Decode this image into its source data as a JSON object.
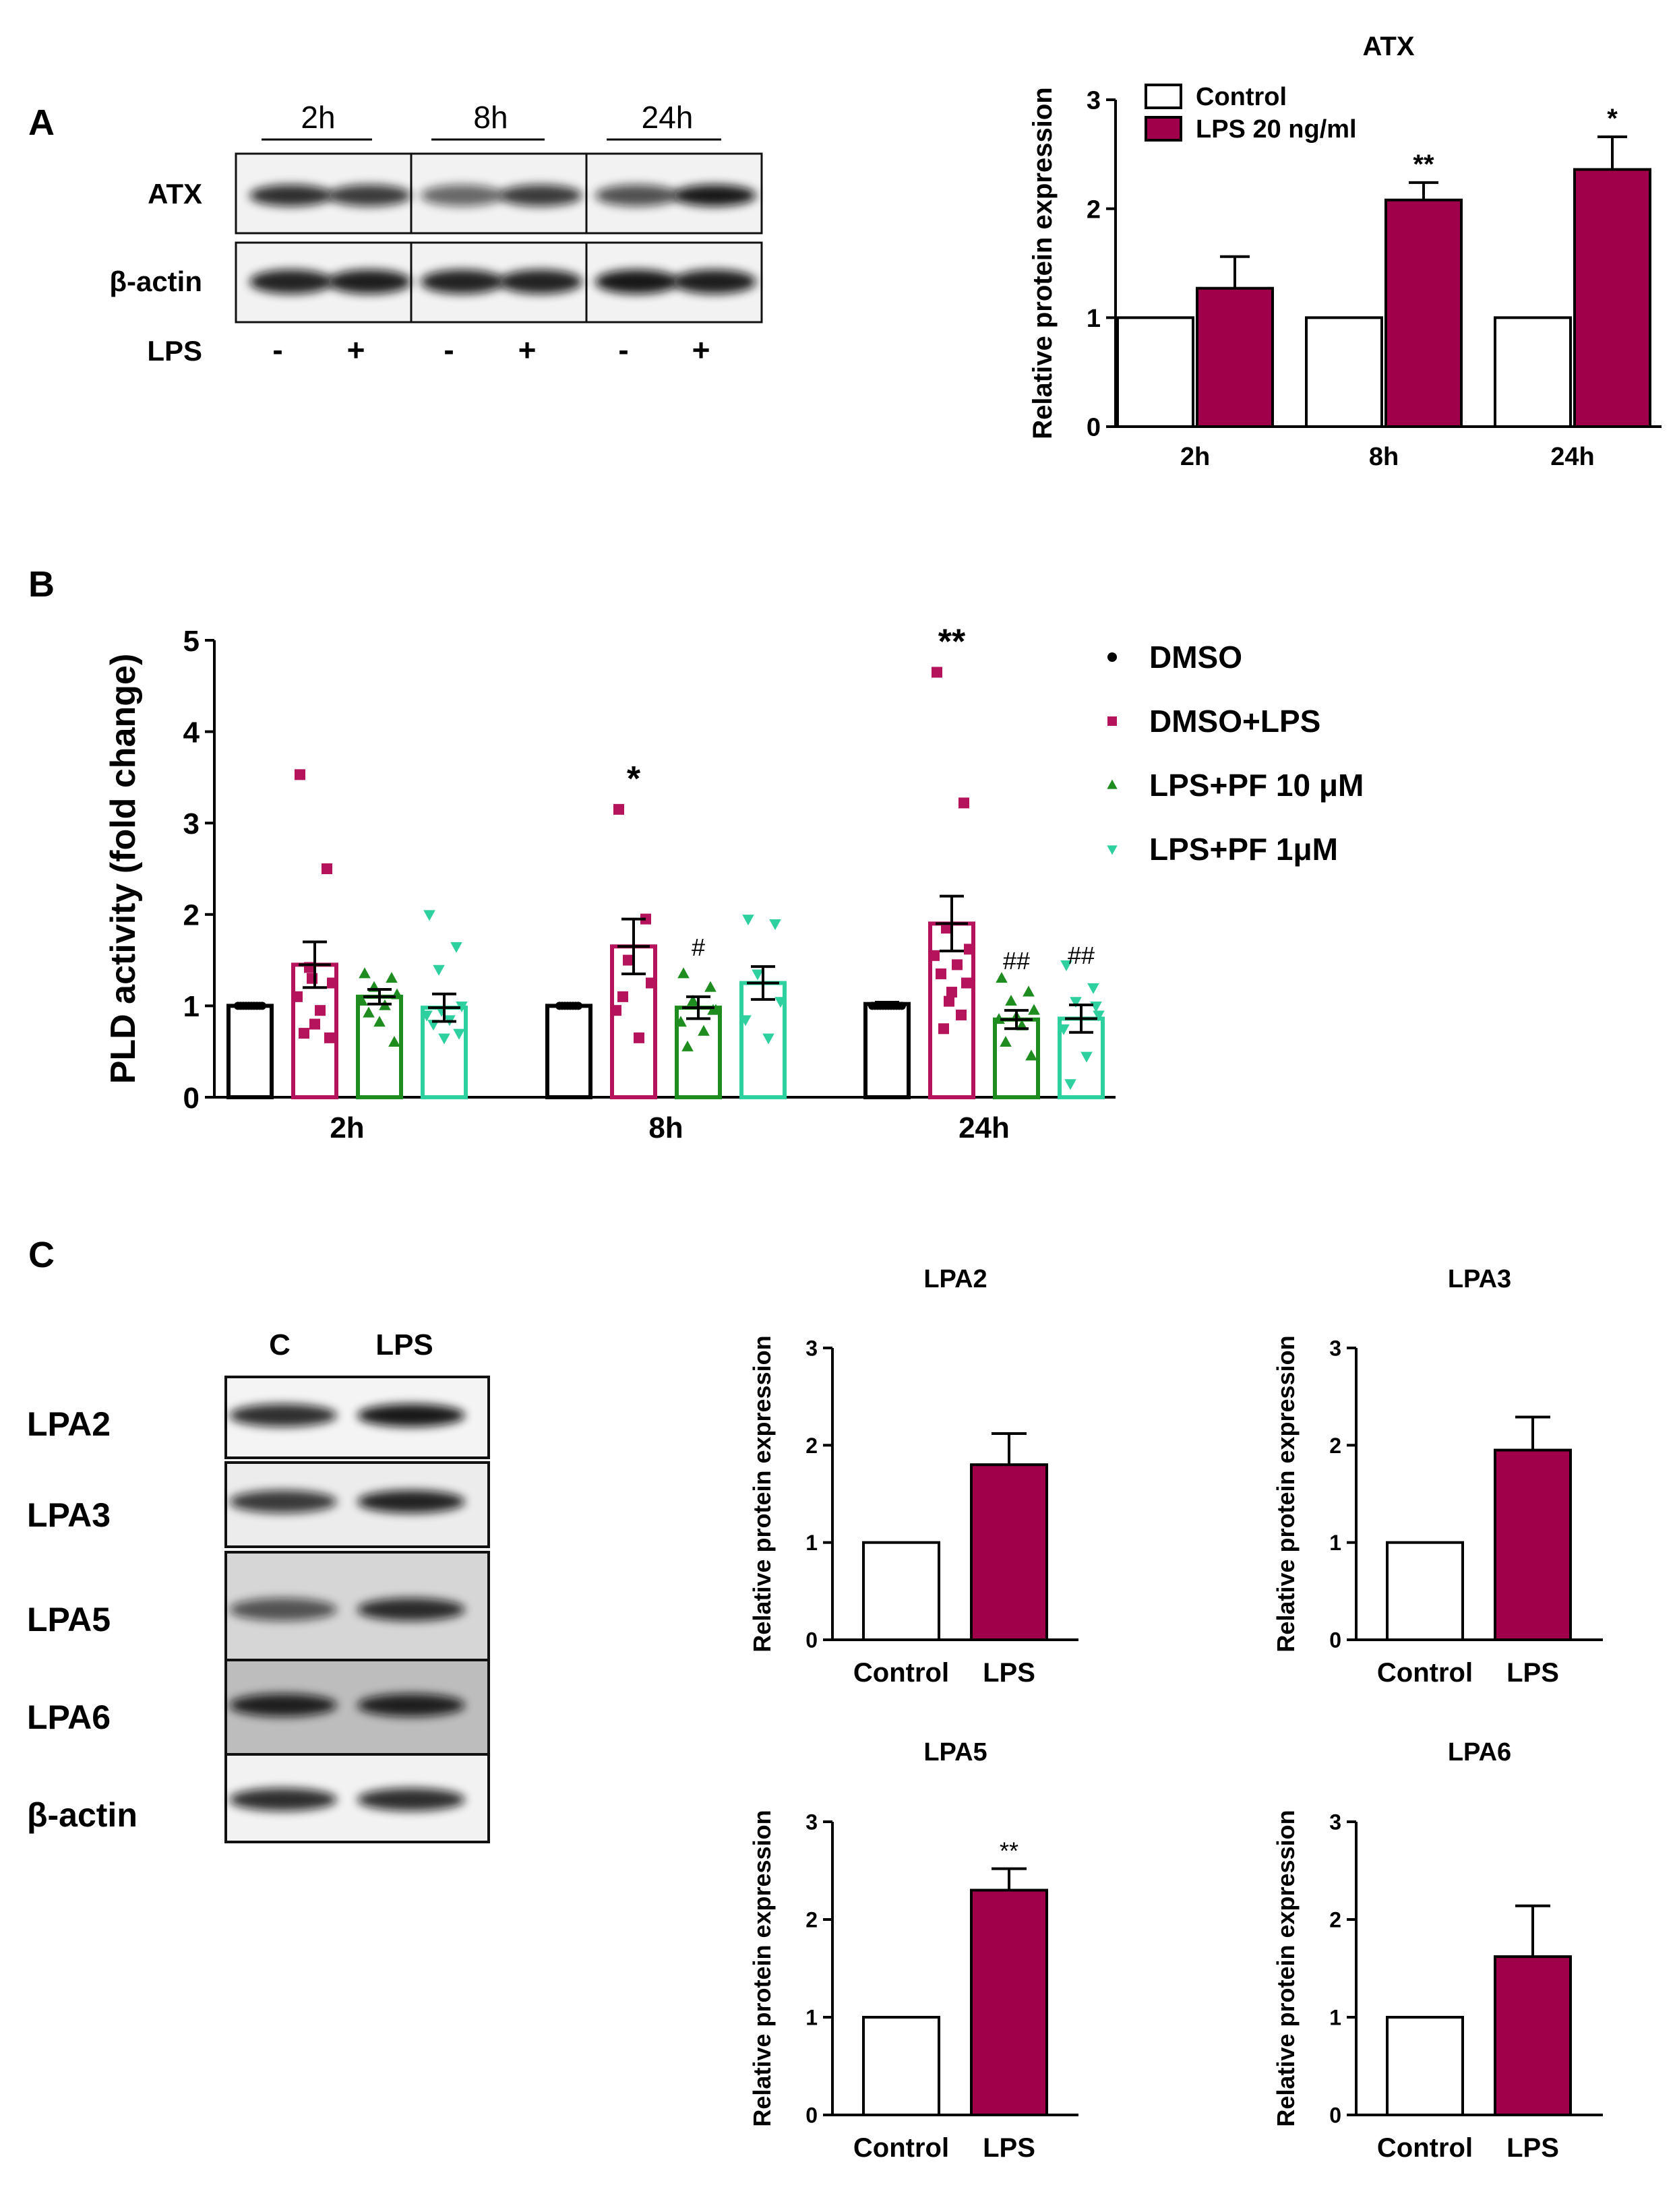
{
  "figure": {
    "panel_labels": [
      "A",
      "B",
      "C"
    ],
    "blot_a": {
      "time_labels": [
        "2h",
        "8h",
        "24h"
      ],
      "row_labels": [
        "ATX",
        "β-actin",
        "LPS"
      ],
      "lps_signs": [
        "-",
        "+",
        "-",
        "+",
        "-",
        "+"
      ]
    },
    "blot_c": {
      "col_labels": [
        "C",
        "LPS"
      ],
      "row_labels": [
        "LPA2",
        "LPA3",
        "LPA5",
        "LPA6",
        "β-actin"
      ]
    }
  },
  "colors": {
    "control": "#ffffff",
    "lps": "#a0004a",
    "dmso": "#000000",
    "dmso_lps": "#b5145c",
    "pf10": "#1e8c1e",
    "pf1": "#2ed0a0"
  },
  "chart_data": [
    {
      "id": "atx",
      "type": "bar",
      "title": "ATX",
      "ylabel": "Relative protein expression",
      "xlabel": "",
      "categories": [
        "2h",
        "8h",
        "24h"
      ],
      "ylim": [
        0,
        3
      ],
      "yticks": [
        0,
        1,
        2,
        3
      ],
      "legend": "top-left",
      "series": [
        {
          "name": "Control",
          "values": [
            1,
            1,
            1
          ],
          "errors": [
            0,
            0,
            0
          ],
          "color_key": "control"
        },
        {
          "name": "LPS 20 ng/ml",
          "values": [
            1.27,
            2.08,
            2.36
          ],
          "errors": [
            0.29,
            0.16,
            0.3
          ],
          "color_key": "lps"
        }
      ],
      "annotations": [
        {
          "series": 1,
          "category": 1,
          "text": "**"
        },
        {
          "series": 1,
          "category": 2,
          "text": "*"
        }
      ]
    },
    {
      "id": "pld",
      "type": "bar",
      "title": "",
      "ylabel": "PLD activity (fold change)",
      "xlabel": "",
      "categories": [
        "2h",
        "8h",
        "24h"
      ],
      "ylim": [
        0,
        5
      ],
      "yticks": [
        0,
        1,
        2,
        3,
        4,
        5
      ],
      "legend": "top-right",
      "series": [
        {
          "name": "DMSO",
          "marker": "circle",
          "color_key": "dmso",
          "values": [
            1.0,
            1.0,
            1.02
          ],
          "errors": [
            0.01,
            0.01,
            0.02
          ],
          "points": [
            [
              1,
              1,
              1,
              1,
              1,
              1,
              1,
              1,
              1,
              1
            ],
            [
              1,
              1,
              1,
              1,
              1,
              1,
              1,
              1
            ],
            [
              1,
              1,
              1,
              1,
              1,
              1,
              1,
              1,
              1,
              1,
              1,
              1
            ]
          ]
        },
        {
          "name": "DMSO+LPS",
          "marker": "square",
          "color_key": "dmso_lps",
          "values": [
            1.45,
            1.65,
            1.9
          ],
          "errors": [
            0.25,
            0.3,
            0.3
          ],
          "points": [
            [
              3.53,
              2.5,
              1.42,
              1.25,
              1.1,
              0.95,
              0.7,
              0.65,
              0.8,
              1.3
            ],
            [
              3.15,
              1.95,
              1.5,
              1.25,
              0.95,
              0.65,
              1.1
            ],
            [
              4.65,
              3.22,
              1.85,
              1.62,
              1.55,
              1.45,
              1.35,
              1.25,
              1.15,
              1.05,
              0.9,
              0.75
            ]
          ]
        },
        {
          "name": "LPS+PF 10 μM",
          "marker": "triangle-up",
          "color_key": "pf10",
          "values": [
            1.1,
            0.98,
            0.85
          ],
          "errors": [
            0.08,
            0.12,
            0.1
          ],
          "points": [
            [
              1.35,
              1.3,
              1.2,
              1.12,
              1.05,
              1.0,
              0.92,
              0.6,
              0.82
            ],
            [
              1.35,
              1.2,
              1.05,
              0.95,
              0.82,
              0.72,
              0.55,
              0.95
            ],
            [
              1.3,
              1.15,
              1.05,
              0.95,
              0.85,
              0.78,
              0.6,
              0.45,
              0.88
            ]
          ]
        },
        {
          "name": "LPS+PF 1μM",
          "marker": "triangle-down",
          "color_key": "pf1",
          "values": [
            0.98,
            1.25,
            0.86
          ],
          "errors": [
            0.15,
            0.18,
            0.15
          ],
          "points": [
            [
              2.0,
              1.65,
              1.4,
              1.0,
              0.9,
              0.85,
              0.8,
              0.7,
              0.65,
              0.95
            ],
            [
              1.95,
              1.9,
              1.35,
              1.05,
              0.85,
              0.65
            ],
            [
              1.45,
              1.2,
              1.05,
              0.9,
              0.75,
              0.45,
              0.15,
              1.0
            ]
          ]
        }
      ],
      "annotations": [
        {
          "series": 1,
          "category": 1,
          "text": "*"
        },
        {
          "series": 1,
          "category": 2,
          "text": "**"
        },
        {
          "series": 2,
          "category": 1,
          "text": "#"
        },
        {
          "series": 2,
          "category": 2,
          "text": "##"
        },
        {
          "series": 3,
          "category": 2,
          "text": "##"
        }
      ]
    },
    {
      "id": "lpa2",
      "type": "bar",
      "title": "LPA2",
      "ylabel": "Relative protein expression",
      "xlabel": "",
      "categories": [
        "Control",
        "LPS"
      ],
      "ylim": [
        0,
        3
      ],
      "yticks": [
        0,
        1,
        2,
        3
      ],
      "values": [
        1,
        1.8
      ],
      "errors": [
        0,
        0.32
      ],
      "color_keys": [
        "control",
        "lps"
      ],
      "annotations": []
    },
    {
      "id": "lpa3",
      "type": "bar",
      "title": "LPA3",
      "ylabel": "Relative protein expression",
      "xlabel": "",
      "categories": [
        "Control",
        "LPS"
      ],
      "ylim": [
        0,
        3
      ],
      "yticks": [
        0,
        1,
        2,
        3
      ],
      "values": [
        1,
        1.95
      ],
      "errors": [
        0,
        0.34
      ],
      "color_keys": [
        "control",
        "lps"
      ],
      "annotations": []
    },
    {
      "id": "lpa5",
      "type": "bar",
      "title": "LPA5",
      "ylabel": "Relative protein expression",
      "xlabel": "",
      "categories": [
        "Control",
        "LPS"
      ],
      "ylim": [
        0,
        3
      ],
      "yticks": [
        0,
        1,
        2,
        3
      ],
      "values": [
        1,
        2.3
      ],
      "errors": [
        0,
        0.22
      ],
      "color_keys": [
        "control",
        "lps"
      ],
      "annotations": [
        {
          "category": 1,
          "text": "**"
        }
      ]
    },
    {
      "id": "lpa6",
      "type": "bar",
      "title": "LPA6",
      "ylabel": "Relative protein expression",
      "xlabel": "",
      "categories": [
        "Control",
        "LPS"
      ],
      "ylim": [
        0,
        3
      ],
      "yticks": [
        0,
        1,
        2,
        3
      ],
      "values": [
        1,
        1.62
      ],
      "errors": [
        0,
        0.52
      ],
      "color_keys": [
        "control",
        "lps"
      ],
      "annotations": []
    }
  ]
}
